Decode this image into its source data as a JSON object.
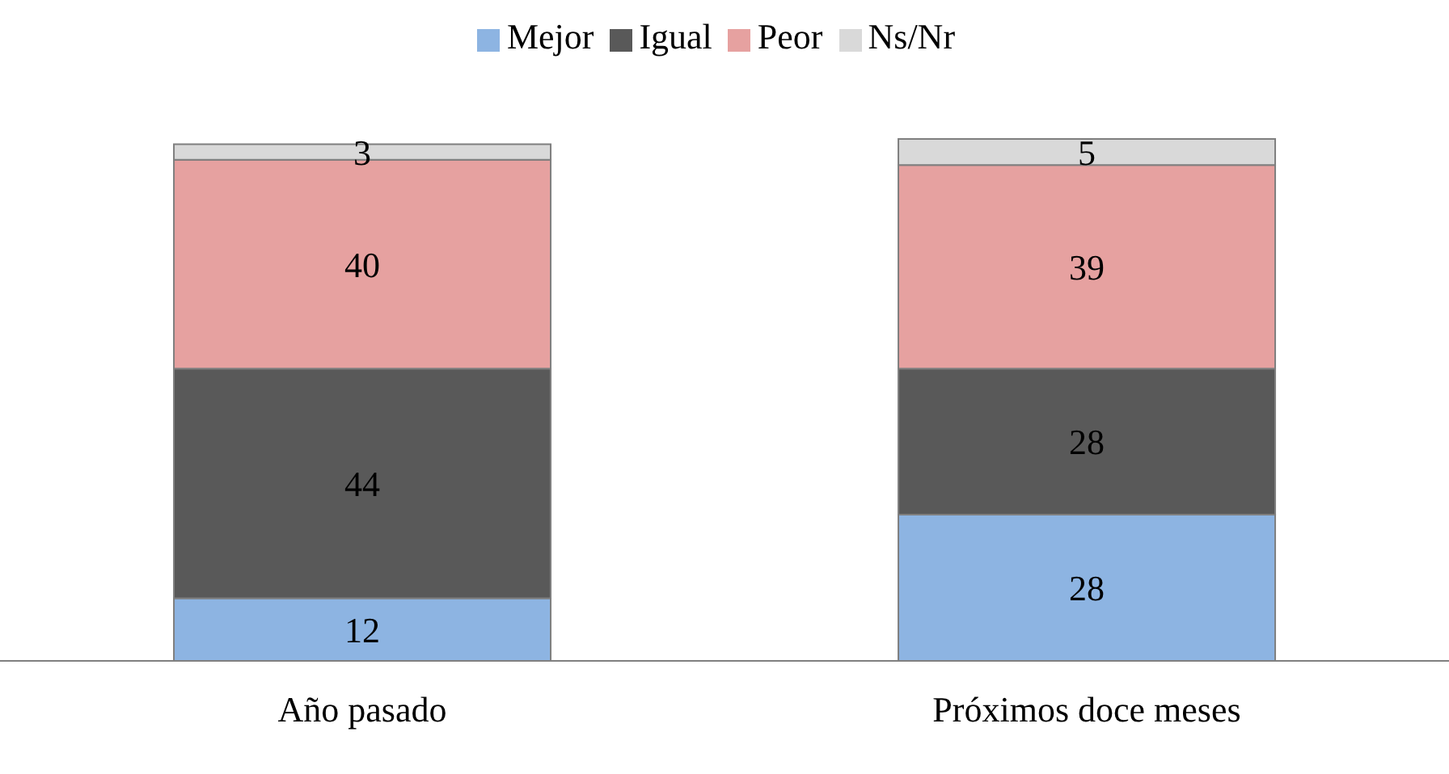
{
  "chart_data": {
    "type": "bar",
    "stacked": true,
    "categories": [
      "Año pasado",
      "Próximos doce meses"
    ],
    "series": [
      {
        "name": "Mejor",
        "color": "#8db4e2",
        "values": [
          12,
          28
        ]
      },
      {
        "name": "Igual",
        "color": "#595959",
        "values": [
          44,
          28
        ]
      },
      {
        "name": "Peor",
        "color": "#e6a1a0",
        "values": [
          40,
          39
        ]
      },
      {
        "name": "Ns/Nr",
        "color": "#d9d9d9",
        "values": [
          3,
          5
        ]
      }
    ],
    "data_labels": true,
    "legend": "top",
    "grid": false
  }
}
